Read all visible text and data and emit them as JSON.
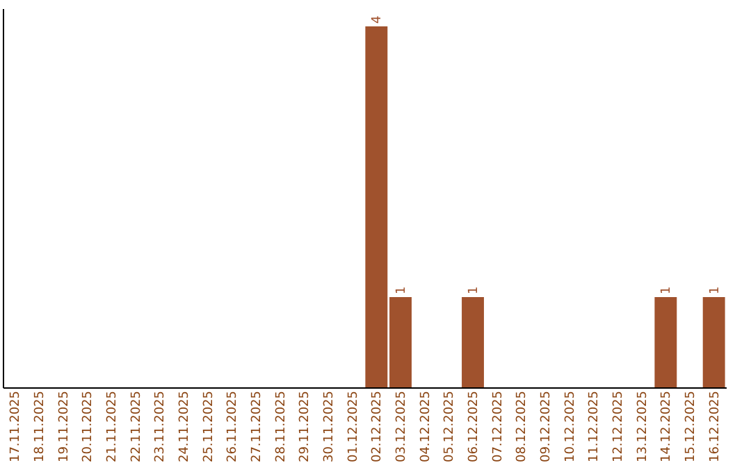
{
  "chart_data": {
    "type": "bar",
    "categories": [
      "17.11.2025",
      "18.11.2025",
      "19.11.2025",
      "20.11.2025",
      "21.11.2025",
      "22.11.2025",
      "23.11.2025",
      "24.11.2025",
      "25.11.2025",
      "26.11.2025",
      "27.11.2025",
      "28.11.2025",
      "29.11.2025",
      "30.11.2025",
      "01.12.2025",
      "02.12.2025",
      "03.12.2025",
      "04.12.2025",
      "05.12.2025",
      "06.12.2025",
      "07.12.2025",
      "08.12.2025",
      "09.12.2025",
      "10.12.2025",
      "11.12.2025",
      "12.12.2025",
      "13.12.2025",
      "14.12.2025",
      "15.12.2025",
      "16.12.2025"
    ],
    "values": [
      null,
      null,
      null,
      null,
      null,
      null,
      null,
      null,
      null,
      null,
      null,
      null,
      null,
      null,
      null,
      4,
      1,
      null,
      null,
      1,
      null,
      null,
      null,
      null,
      null,
      null,
      null,
      1,
      null,
      1
    ],
    "value_labels": [
      null,
      null,
      null,
      null,
      null,
      null,
      null,
      null,
      null,
      null,
      null,
      null,
      null,
      null,
      null,
      "4",
      "1",
      null,
      null,
      "1",
      null,
      null,
      null,
      null,
      null,
      null,
      null,
      "1",
      null,
      "1"
    ],
    "color": "#a0522d",
    "tick_labels": "x",
    "grid": false
  }
}
